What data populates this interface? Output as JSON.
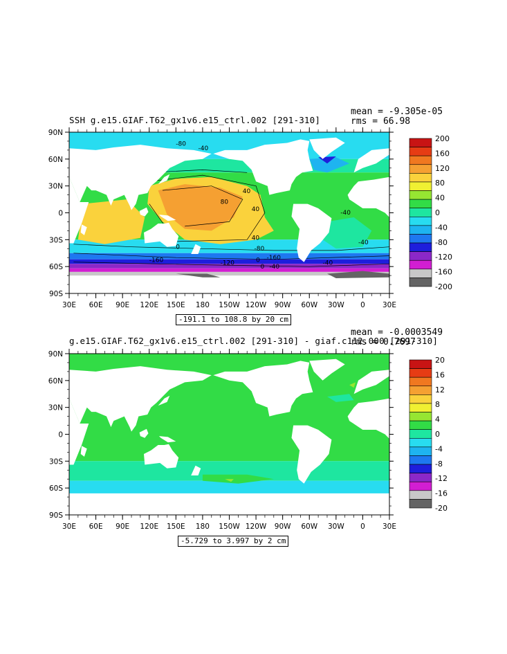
{
  "top": {
    "title": "SSH g.e15.GIAF.T62_gx1v6.e15_ctrl.002 [291-310]",
    "mean": "mean = -9.305e-05",
    "rms": "rms = 66.98",
    "range": "-191.1 to 108.8 by 20 cm",
    "colorbar_labels": [
      "200",
      "160",
      "120",
      "80",
      "40",
      "0",
      "-40",
      "-80",
      "-120",
      "-160",
      "-200"
    ],
    "colorbar_colors": [
      "#c81414",
      "#e63c14",
      "#f07820",
      "#f5a032",
      "#fad23c",
      "#f0f032",
      "#96e632",
      "#32dc46",
      "#1ee6a0",
      "#28dcf0",
      "#1eb4f0",
      "#1e78f0",
      "#1e1edc",
      "#8c28c8",
      "#d21ed2",
      "#c8c8c8",
      "#646464"
    ],
    "contour_labels": [
      "-80",
      "-40",
      "-40",
      "40",
      "80",
      "40",
      "40",
      "0",
      "0",
      "-40",
      "-80",
      "-160",
      "-160",
      "-120",
      "-40",
      "0",
      "0",
      "-40"
    ]
  },
  "bottom": {
    "title": "g.e15.GIAF.T62_gx1v6.e15_ctrl.002 [291-310] - giaf.c112.000 [291-310]",
    "mean": "mean = -0.0003549",
    "rms": "rms = 0.7697",
    "range": "-5.729 to 3.997 by 2 cm",
    "colorbar_labels": [
      "20",
      "16",
      "12",
      "8",
      "4",
      "0",
      "-4",
      "-8",
      "-12",
      "-16",
      "-20"
    ],
    "colorbar_colors": [
      "#c81414",
      "#e63c14",
      "#f07820",
      "#f5a032",
      "#fad23c",
      "#f0f032",
      "#96e632",
      "#32dc46",
      "#1ee6a0",
      "#28dcf0",
      "#1eb4f0",
      "#1e78f0",
      "#1e1edc",
      "#8c28c8",
      "#d21ed2",
      "#c8c8c8",
      "#646464"
    ]
  },
  "axes": {
    "lat_labels": [
      "90N",
      "60N",
      "30N",
      "0",
      "30S",
      "60S",
      "90S"
    ],
    "lon_labels": [
      "30E",
      "60E",
      "90E",
      "120E",
      "150E",
      "180",
      "150W",
      "120W",
      "90W",
      "60W",
      "30W",
      "0",
      "30E"
    ]
  }
}
